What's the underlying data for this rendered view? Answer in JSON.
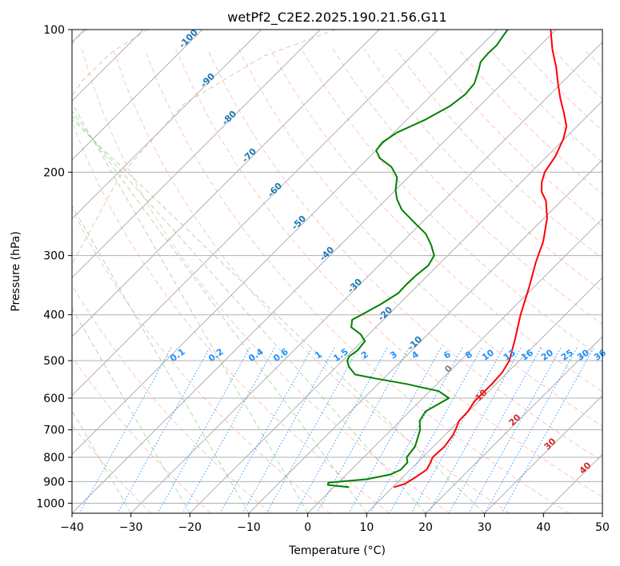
{
  "chart_data": {
    "type": "line",
    "subtype": "skew-T log-P diagram",
    "title": "wetPf2_C2E2.2025.190.21.56.G11",
    "xlabel": "Temperature (°C)",
    "ylabel": "Pressure (hPa)",
    "xlim": [
      -40,
      50
    ],
    "ylim": [
      1050,
      100
    ],
    "yscale": "log",
    "x_ticks": [
      -40,
      -30,
      -20,
      -10,
      0,
      10,
      20,
      30,
      40,
      50
    ],
    "y_ticks": [
      100,
      200,
      300,
      400,
      500,
      600,
      700,
      800,
      900,
      1000
    ],
    "grid": true,
    "background_lines": {
      "isotherms": "solid gray",
      "dry_adiabats": "dashed salmon",
      "moist_adiabats": "dashed light green",
      "mixing_ratio": "dotted blue",
      "isentropic_arcs": "dashed tan"
    },
    "mixing_ratio_labels": [
      "0.1",
      "0.2",
      "0.4",
      "0.6",
      "1",
      "1.5",
      "2",
      "3",
      "4",
      "6",
      "8",
      "10",
      "13",
      "16",
      "20",
      "25",
      "30",
      "36"
    ],
    "isotherm_labels": [
      "-100",
      "-90",
      "-80",
      "-70",
      "-60",
      "-50",
      "-40",
      "-30",
      "-20",
      "-10",
      "0",
      "10",
      "20",
      "30",
      "40"
    ],
    "series": [
      {
        "color": "#ff0000",
        "profile": "temperature",
        "points": [
          {
            "p": 925,
            "t": 10.2
          },
          {
            "p": 910,
            "t": 11.5
          },
          {
            "p": 880,
            "t": 12.2
          },
          {
            "p": 850,
            "t": 12.8
          },
          {
            "p": 820,
            "t": 12.2
          },
          {
            "p": 800,
            "t": 11.7
          },
          {
            "p": 760,
            "t": 11.9
          },
          {
            "p": 720,
            "t": 11.4
          },
          {
            "p": 700,
            "t": 10.9
          },
          {
            "p": 670,
            "t": 10.0
          },
          {
            "p": 640,
            "t": 9.9
          },
          {
            "p": 610,
            "t": 9.3
          },
          {
            "p": 590,
            "t": 9.3
          },
          {
            "p": 560,
            "t": 9.3
          },
          {
            "p": 530,
            "t": 9.1
          },
          {
            "p": 500,
            "t": 8.3
          },
          {
            "p": 450,
            "t": 5.6
          },
          {
            "p": 400,
            "t": 2.4
          },
          {
            "p": 350,
            "t": -0.8
          },
          {
            "p": 310,
            "t": -3.9
          },
          {
            "p": 280,
            "t": -6.2
          },
          {
            "p": 250,
            "t": -9.5
          },
          {
            "p": 230,
            "t": -12.6
          },
          {
            "p": 220,
            "t": -14.9
          },
          {
            "p": 210,
            "t": -16.5
          },
          {
            "p": 200,
            "t": -17.7
          },
          {
            "p": 185,
            "t": -18.6
          },
          {
            "p": 170,
            "t": -20.2
          },
          {
            "p": 160,
            "t": -21.8
          },
          {
            "p": 150,
            "t": -24.5
          },
          {
            "p": 140,
            "t": -27.5
          },
          {
            "p": 130,
            "t": -30.5
          },
          {
            "p": 120,
            "t": -33.6
          },
          {
            "p": 110,
            "t": -37.3
          },
          {
            "p": 100,
            "t": -40.9
          }
        ]
      },
      {
        "color": "#008000",
        "profile": "dewpoint",
        "points": [
          {
            "p": 925,
            "t": 2.6
          },
          {
            "p": 915,
            "t": -1.4
          },
          {
            "p": 905,
            "t": -1.7
          },
          {
            "p": 890,
            "t": 4.2
          },
          {
            "p": 870,
            "t": 7.4
          },
          {
            "p": 850,
            "t": 8.4
          },
          {
            "p": 820,
            "t": 8.3
          },
          {
            "p": 800,
            "t": 7.3
          },
          {
            "p": 760,
            "t": 6.9
          },
          {
            "p": 720,
            "t": 5.6
          },
          {
            "p": 700,
            "t": 4.9
          },
          {
            "p": 670,
            "t": 3.3
          },
          {
            "p": 640,
            "t": 2.7
          },
          {
            "p": 600,
            "t": 4.4
          },
          {
            "p": 580,
            "t": 1.5
          },
          {
            "p": 560,
            "t": -5.2
          },
          {
            "p": 545,
            "t": -11.5
          },
          {
            "p": 535,
            "t": -15.5
          },
          {
            "p": 515,
            "t": -17.9
          },
          {
            "p": 500,
            "t": -19.2
          },
          {
            "p": 490,
            "t": -19.6
          },
          {
            "p": 475,
            "t": -19.2
          },
          {
            "p": 455,
            "t": -19.5
          },
          {
            "p": 440,
            "t": -21.4
          },
          {
            "p": 425,
            "t": -24.2
          },
          {
            "p": 410,
            "t": -25.3
          },
          {
            "p": 395,
            "t": -24.2
          },
          {
            "p": 380,
            "t": -23.1
          },
          {
            "p": 360,
            "t": -22.0
          },
          {
            "p": 345,
            "t": -22.1
          },
          {
            "p": 330,
            "t": -22.0
          },
          {
            "p": 315,
            "t": -21.6
          },
          {
            "p": 300,
            "t": -22.3
          },
          {
            "p": 285,
            "t": -24.6
          },
          {
            "p": 270,
            "t": -27.4
          },
          {
            "p": 255,
            "t": -31.4
          },
          {
            "p": 240,
            "t": -35.6
          },
          {
            "p": 228,
            "t": -38.2
          },
          {
            "p": 218,
            "t": -40.0
          },
          {
            "p": 205,
            "t": -41.9
          },
          {
            "p": 195,
            "t": -44.6
          },
          {
            "p": 187,
            "t": -48.0
          },
          {
            "p": 180,
            "t": -50.0
          },
          {
            "p": 173,
            "t": -50.3
          },
          {
            "p": 165,
            "t": -49.5
          },
          {
            "p": 155,
            "t": -46.9
          },
          {
            "p": 145,
            "t": -45.0
          },
          {
            "p": 137,
            "t": -44.4
          },
          {
            "p": 130,
            "t": -44.7
          },
          {
            "p": 122,
            "t": -46.2
          },
          {
            "p": 117,
            "t": -47.3
          },
          {
            "p": 112,
            "t": -47.5
          },
          {
            "p": 108,
            "t": -47.4
          },
          {
            "p": 104,
            "t": -47.8
          },
          {
            "p": 100,
            "t": -48.2
          }
        ]
      }
    ]
  }
}
